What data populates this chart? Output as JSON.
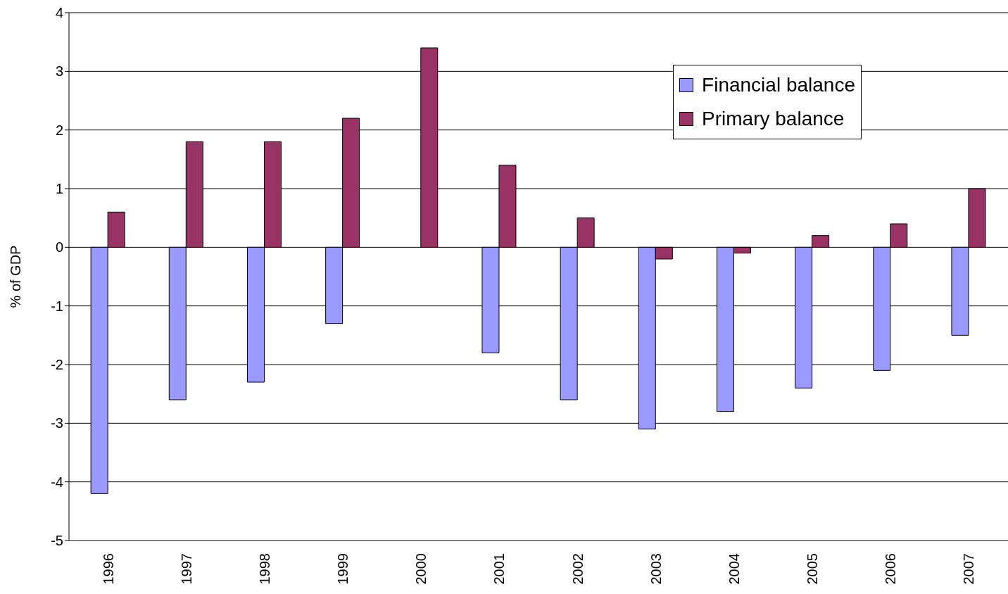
{
  "chart_data": {
    "type": "bar",
    "ylabel": "% of GDP",
    "categories": [
      "1996",
      "1997",
      "1998",
      "1999",
      "2000",
      "2001",
      "2002",
      "2003",
      "2004",
      "2005",
      "2006",
      "2007"
    ],
    "series": [
      {
        "name": "Financial balance",
        "color": "#9999ff",
        "values": [
          -4.2,
          -2.6,
          -2.3,
          -1.3,
          0,
          -1.8,
          -2.6,
          -3.1,
          -2.8,
          -2.4,
          -2.1,
          -1.5
        ]
      },
      {
        "name": "Primary balance",
        "color": "#993366",
        "values": [
          0.6,
          1.8,
          1.8,
          2.2,
          3.4,
          1.4,
          0.5,
          -0.2,
          -0.1,
          0.2,
          0.4,
          1.0
        ]
      }
    ],
    "ylim": [
      -5,
      4
    ],
    "yticks": [
      -5,
      -4,
      -3,
      -2,
      -1,
      0,
      1,
      2,
      3,
      4
    ],
    "grid": "y",
    "legend": "top right"
  }
}
